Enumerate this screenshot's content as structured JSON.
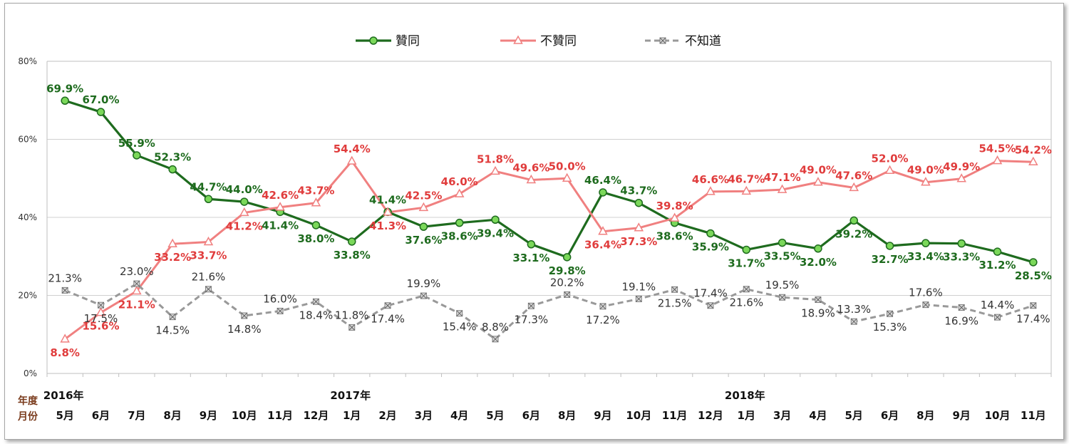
{
  "chart_data": {
    "type": "line",
    "corner_label_top": "年度",
    "corner_label_bottom": "月份",
    "ylim": [
      0,
      80
    ],
    "y_ticks": [
      "0%",
      "20%",
      "40%",
      "60%",
      "80%"
    ],
    "grid": true,
    "legend_position": "top-center",
    "categories": [
      "5月",
      "6月",
      "7月",
      "8月",
      "9月",
      "10月",
      "11月",
      "12月",
      "1月",
      "2月",
      "3月",
      "4月",
      "5月",
      "6月",
      "8月",
      "9月",
      "10月",
      "11月",
      "12月",
      "1月",
      "3月",
      "4月",
      "5月",
      "6月",
      "8月",
      "9月",
      "10月",
      "11月"
    ],
    "years": [
      {
        "label": "2016年",
        "index": 0
      },
      {
        "label": "2017年",
        "index": 8
      },
      {
        "label": "2018年",
        "index": 19
      }
    ],
    "series": [
      {
        "name": "贊同",
        "color": "#1e6b1e",
        "marker": "circle",
        "values": [
          69.9,
          67.0,
          55.9,
          52.3,
          44.7,
          44.0,
          41.4,
          38.0,
          33.8,
          41.4,
          37.6,
          38.6,
          39.4,
          33.1,
          29.8,
          46.4,
          43.7,
          38.6,
          35.9,
          31.7,
          33.5,
          32.0,
          39.2,
          32.7,
          33.4,
          33.3,
          31.2,
          28.5
        ],
        "labels": [
          "69.9%",
          "67.0%",
          "55.9%",
          "52.3%",
          "44.7%",
          "44.0%",
          "41.4%",
          "38.0%",
          "33.8%",
          "41.4%",
          "37.6%",
          "38.6%",
          "39.4%",
          "33.1%",
          "29.8%",
          "46.4%",
          "43.7%",
          "38.6%",
          "35.9%",
          "31.7%",
          "33.5%",
          "32.0%",
          "39.2%",
          "32.7%",
          "33.4%",
          "33.3%",
          "31.2%",
          "28.5%"
        ]
      },
      {
        "name": "不贊同",
        "color": "#f08080",
        "marker": "triangle",
        "values": [
          8.8,
          15.6,
          21.1,
          33.2,
          33.7,
          41.2,
          42.6,
          43.7,
          54.4,
          41.3,
          42.5,
          46.0,
          51.8,
          49.6,
          50.0,
          36.4,
          37.3,
          39.8,
          46.6,
          46.7,
          47.1,
          49.0,
          47.6,
          52.0,
          49.0,
          49.9,
          54.5,
          54.2
        ],
        "labels": [
          "8.8%",
          "15.6%",
          "21.1%",
          "33.2%",
          "33.7%",
          "41.2%",
          "42.6%",
          "43.7%",
          "54.4%",
          "41.3%",
          "42.5%",
          "46.0%",
          "51.8%",
          "49.6%",
          "50.0%",
          "36.4%",
          "37.3%",
          "39.8%",
          "46.6%",
          "46.7%",
          "47.1%",
          "49.0%",
          "47.6%",
          "52.0%",
          "49.0%",
          "49.9%",
          "54.5%",
          "54.2%"
        ]
      },
      {
        "name": "不知道",
        "color": "#999999",
        "marker": "x-square",
        "values": [
          21.3,
          17.5,
          23.0,
          14.5,
          21.6,
          14.8,
          16.0,
          18.4,
          11.8,
          17.4,
          19.9,
          15.4,
          8.8,
          17.3,
          20.2,
          17.2,
          19.1,
          21.5,
          17.4,
          21.6,
          19.5,
          18.9,
          13.3,
          15.3,
          17.6,
          16.9,
          14.4,
          17.4
        ],
        "labels": [
          "21.3%",
          "17.5%",
          "23.0%",
          "14.5%",
          "21.6%",
          "14.8%",
          "16.0%",
          "18.4%",
          "11.8%",
          "17.4%",
          "19.9%",
          "15.4%",
          "8.8%",
          "17.3%",
          "20.2%",
          "17.2%",
          "19.1%",
          "21.5%",
          "17.4%",
          "21.6%",
          "19.5%",
          "18.9%",
          "13.3%",
          "15.3%",
          "17.6%",
          "16.9%",
          "14.4%",
          "17.4%"
        ]
      }
    ]
  }
}
